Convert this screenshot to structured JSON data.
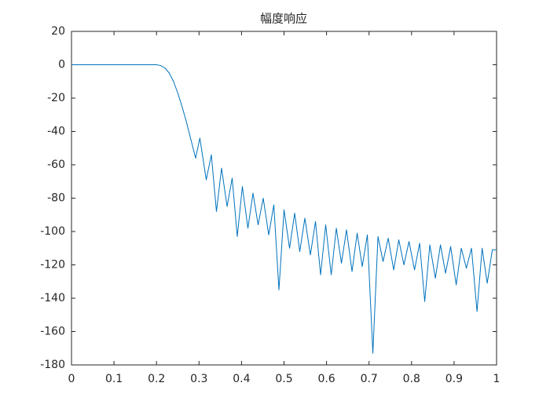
{
  "chart_data": {
    "type": "line",
    "title": "幅度响应",
    "x": [
      0,
      0.1,
      0.2,
      0.21,
      0.22,
      0.23,
      0.24,
      0.25,
      0.26,
      0.27,
      0.28,
      0.292,
      0.302,
      0.317,
      0.329,
      0.341,
      0.353,
      0.366,
      0.378,
      0.39,
      0.402,
      0.415,
      0.427,
      0.439,
      0.451,
      0.464,
      0.476,
      0.488,
      0.5,
      0.513,
      0.525,
      0.537,
      0.549,
      0.562,
      0.574,
      0.586,
      0.598,
      0.611,
      0.623,
      0.635,
      0.647,
      0.66,
      0.672,
      0.684,
      0.696,
      0.709,
      0.721,
      0.733,
      0.745,
      0.758,
      0.77,
      0.782,
      0.794,
      0.807,
      0.819,
      0.831,
      0.843,
      0.856,
      0.868,
      0.88,
      0.892,
      0.905,
      0.917,
      0.929,
      0.941,
      0.954,
      0.966,
      0.978,
      0.99,
      1.0
    ],
    "series": [
      {
        "color": "#0072bd",
        "values": [
          0,
          0,
          0,
          -0.5,
          -2,
          -5,
          -10,
          -17,
          -25,
          -34,
          -44,
          -56,
          -44,
          -69,
          -54,
          -88,
          -62,
          -85,
          -68,
          -103,
          -73,
          -98,
          -77,
          -96,
          -80,
          -102,
          -84,
          -135,
          -87,
          -110,
          -89,
          -112,
          -92,
          -114,
          -94,
          -126,
          -96,
          -126,
          -98,
          -119,
          -99,
          -124,
          -101,
          -121,
          -102,
          -173,
          -103,
          -118,
          -104,
          -123,
          -105,
          -120,
          -106,
          -123,
          -107,
          -142,
          -108,
          -128,
          -108,
          -125,
          -109,
          -132,
          -110,
          -122,
          -110,
          -148,
          -110,
          -131,
          -111,
          -111
        ]
      }
    ],
    "xlim": [
      0,
      1
    ],
    "xticks": [
      0,
      0.1,
      0.2,
      0.3,
      0.4,
      0.5,
      0.6,
      0.7,
      0.8,
      0.9,
      1
    ],
    "ylim": [
      -180,
      20
    ],
    "yticks": [
      -180,
      -160,
      -140,
      -120,
      -100,
      -80,
      -60,
      -40,
      -20,
      0,
      20
    ],
    "grid": false
  }
}
